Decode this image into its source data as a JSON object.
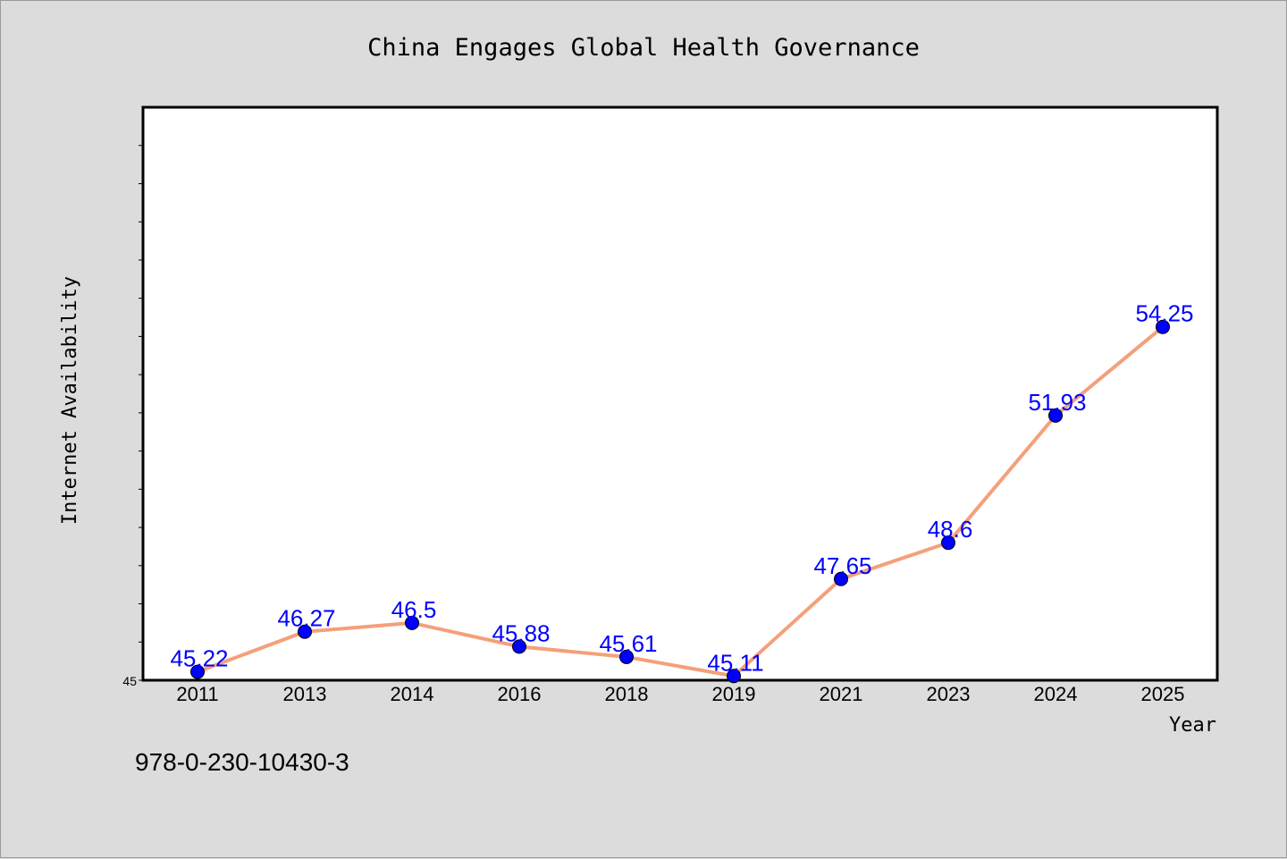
{
  "chart_data": {
    "type": "line",
    "title": "China Engages Global Health Governance",
    "xlabel": "Year",
    "ylabel": "Internet Availability",
    "categories": [
      "2011",
      "2013",
      "2014",
      "2016",
      "2018",
      "2019",
      "2021",
      "2023",
      "2024",
      "2025"
    ],
    "series": [
      {
        "values": [
          45.22,
          46.27,
          46.5,
          45.88,
          45.61,
          45.11,
          47.65,
          48.6,
          51.93,
          54.25
        ],
        "labels": [
          "45.22",
          "46.27",
          "46.5",
          "45.88",
          "45.61",
          "45.11",
          "47.65",
          "48.6",
          "51.93",
          "54.25"
        ],
        "line_color": "#f4a07a",
        "marker_color": "#0000ff",
        "label_color": "#0000ff"
      }
    ],
    "ylim": [
      45,
      60
    ],
    "ytick_labels": [
      "45"
    ],
    "grid": false,
    "legend": "none"
  },
  "footer": {
    "isbn": "978-0-230-10430-3"
  },
  "colors": {
    "background": "#dcdcdc",
    "plot_area": "#ffffff",
    "axis": "#000000"
  }
}
